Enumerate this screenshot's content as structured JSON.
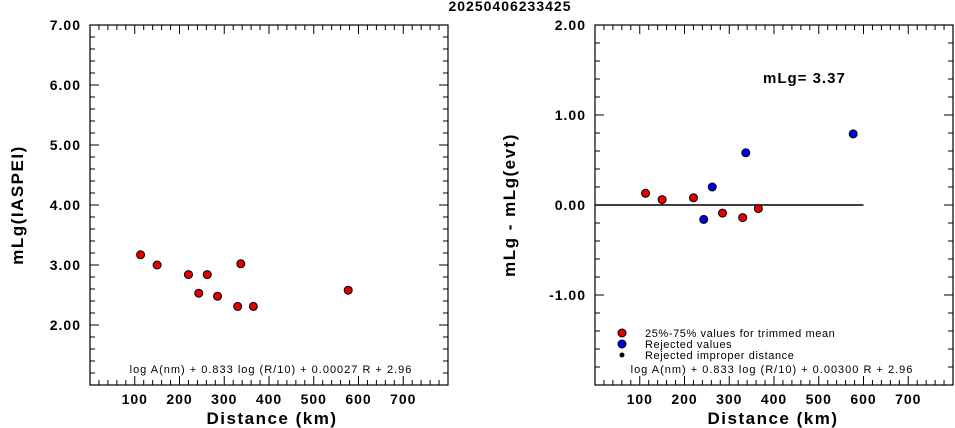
{
  "title": "20250406233425",
  "chart_data": [
    {
      "type": "scatter",
      "xlabel": "Distance (km)",
      "ylabel": "mLg(IASPEI)",
      "xlim": [
        0,
        800
      ],
      "ylim": [
        1.0,
        7.0
      ],
      "xticks": [
        "100",
        "200",
        "300",
        "400",
        "500",
        "600",
        "700"
      ],
      "yticks": [
        "2.00",
        "3.00",
        "4.00",
        "5.00",
        "6.00",
        "7.00"
      ],
      "formula": "log A(nm) + 0.833 log (R/10) + 0.00027 R + 2.96",
      "series": [
        {
          "color": "#e00000",
          "points": [
            [
              113,
              3.17
            ],
            [
              150,
              3.0
            ],
            [
              220,
              2.84
            ],
            [
              243,
              2.53
            ],
            [
              262,
              2.84
            ],
            [
              285,
              2.48
            ],
            [
              330,
              2.31
            ],
            [
              337,
              3.02
            ],
            [
              365,
              2.31
            ],
            [
              577,
              2.58
            ]
          ]
        }
      ]
    },
    {
      "type": "scatter",
      "xlabel": "Distance (km)",
      "ylabel": "mLg - mLg(evt)",
      "xlim": [
        0,
        800
      ],
      "ylim": [
        -2.0,
        2.0
      ],
      "xticks": [
        "100",
        "200",
        "300",
        "400",
        "500",
        "600",
        "700"
      ],
      "yticks": [
        "-1.00",
        "0.00",
        "1.00",
        "2.00"
      ],
      "annotation": "mLg= 3.37",
      "reference_line": {
        "y": 0.0,
        "x_range": [
          0,
          600
        ]
      },
      "formula": "log A(nm) + 0.833 log (R/10) + 0.00300 R  + 2.96",
      "legend": [
        {
          "label": "25%-75% values for trimmed mean",
          "color": "#e00000"
        },
        {
          "label": "Rejected values",
          "color": "#0000e0"
        },
        {
          "label": "Rejected improper distance",
          "color": "#000000"
        }
      ],
      "legend_position": "bottom-left",
      "series": [
        {
          "name": "25%-75% values for trimmed mean",
          "color": "#e00000",
          "points": [
            [
              113,
              0.13
            ],
            [
              150,
              0.06
            ],
            [
              220,
              0.08
            ],
            [
              285,
              -0.09
            ],
            [
              330,
              -0.14
            ],
            [
              365,
              -0.04
            ]
          ]
        },
        {
          "name": "Rejected values",
          "color": "#0000e0",
          "points": [
            [
              243,
              -0.16
            ],
            [
              262,
              0.2
            ],
            [
              337,
              0.58
            ],
            [
              577,
              0.79
            ]
          ]
        }
      ]
    }
  ]
}
